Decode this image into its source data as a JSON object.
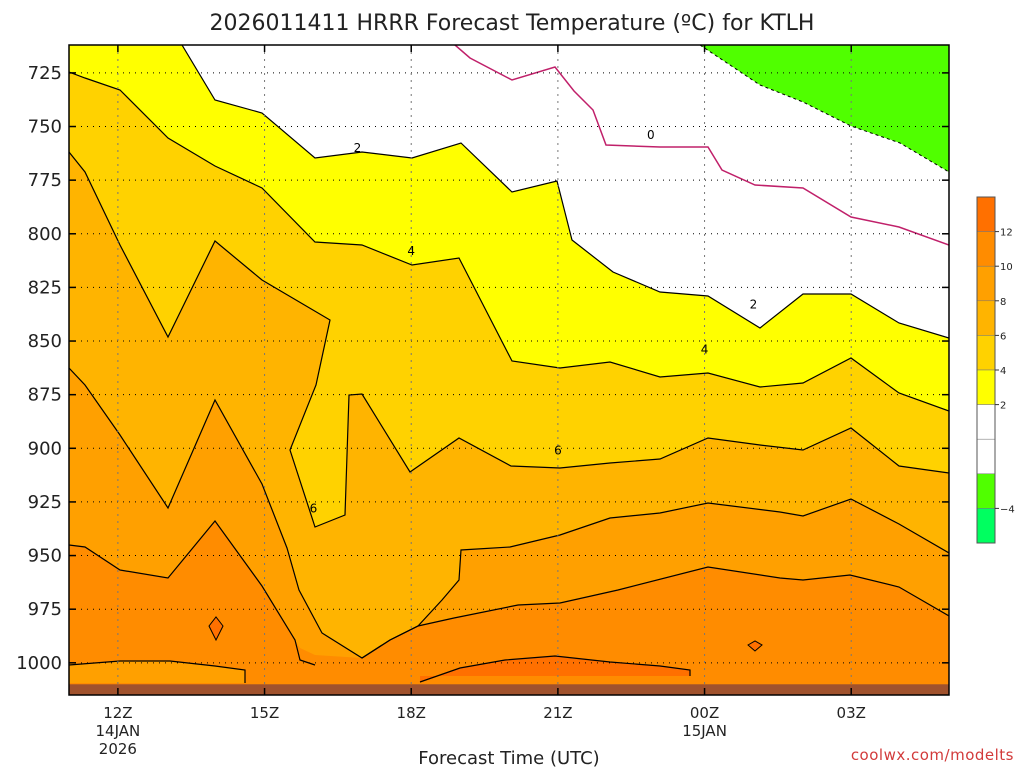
{
  "chart_data": {
    "type": "heatmap",
    "title": "2026011411 HRRR Forecast Temperature (ºC) for KTLH",
    "xlabel": "Forecast Time (UTC)",
    "credit": "coolwx.com/modelts",
    "x_ticks": [
      {
        "label": "12Z",
        "sub1": "14JAN",
        "sub2": "2026",
        "hour": 12
      },
      {
        "label": "15Z",
        "sub1": "",
        "sub2": "",
        "hour": 15
      },
      {
        "label": "18Z",
        "sub1": "",
        "sub2": "",
        "hour": 18
      },
      {
        "label": "21Z",
        "sub1": "",
        "sub2": "",
        "hour": 21
      },
      {
        "label": "00Z",
        "sub1": "15JAN",
        "sub2": "",
        "hour": 24
      },
      {
        "label": "03Z",
        "sub1": "",
        "sub2": "",
        "hour": 27
      }
    ],
    "xlim": [
      11,
      29
    ],
    "y_ticks": [
      725,
      750,
      775,
      800,
      825,
      850,
      875,
      900,
      925,
      950,
      975,
      1000
    ],
    "ylim": [
      1015,
      712
    ],
    "y_scale": "pressure (hPa), increasing downward",
    "grid": true,
    "colorbar": {
      "ticks": [
        12,
        10,
        8,
        6,
        4,
        2,
        -4
      ],
      "bins": [
        {
          "from": 12,
          "to": 14,
          "color": "#ff7000"
        },
        {
          "from": 10,
          "to": 12,
          "color": "#ff8c00"
        },
        {
          "from": 8,
          "to": 10,
          "color": "#ffa000"
        },
        {
          "from": 6,
          "to": 8,
          "color": "#ffb400"
        },
        {
          "from": 4,
          "to": 6,
          "color": "#ffd200"
        },
        {
          "from": 2,
          "to": 4,
          "color": "#ffff00"
        },
        {
          "from": 0,
          "to": 2,
          "color": "#ffffff"
        },
        {
          "from": -2,
          "to": 0,
          "color": "#ffffff"
        },
        {
          "from": -4,
          "to": -2,
          "color": "#50ff00"
        },
        {
          "from": -6,
          "to": -4,
          "color": "#00ff60"
        }
      ]
    },
    "contour_labels": [
      {
        "text": "0",
        "hour": 22.9,
        "p": 754
      },
      {
        "text": "2",
        "hour": 16.9,
        "p": 760
      },
      {
        "text": "2",
        "hour": 25.0,
        "p": 833
      },
      {
        "text": "4",
        "hour": 18.0,
        "p": 808
      },
      {
        "text": "4",
        "hour": 24.0,
        "p": 854
      },
      {
        "text": "6",
        "hour": 16.0,
        "p": 928
      },
      {
        "text": "6",
        "hour": 21.0,
        "p": 901
      }
    ],
    "ground_level_hPa": 1010
  }
}
